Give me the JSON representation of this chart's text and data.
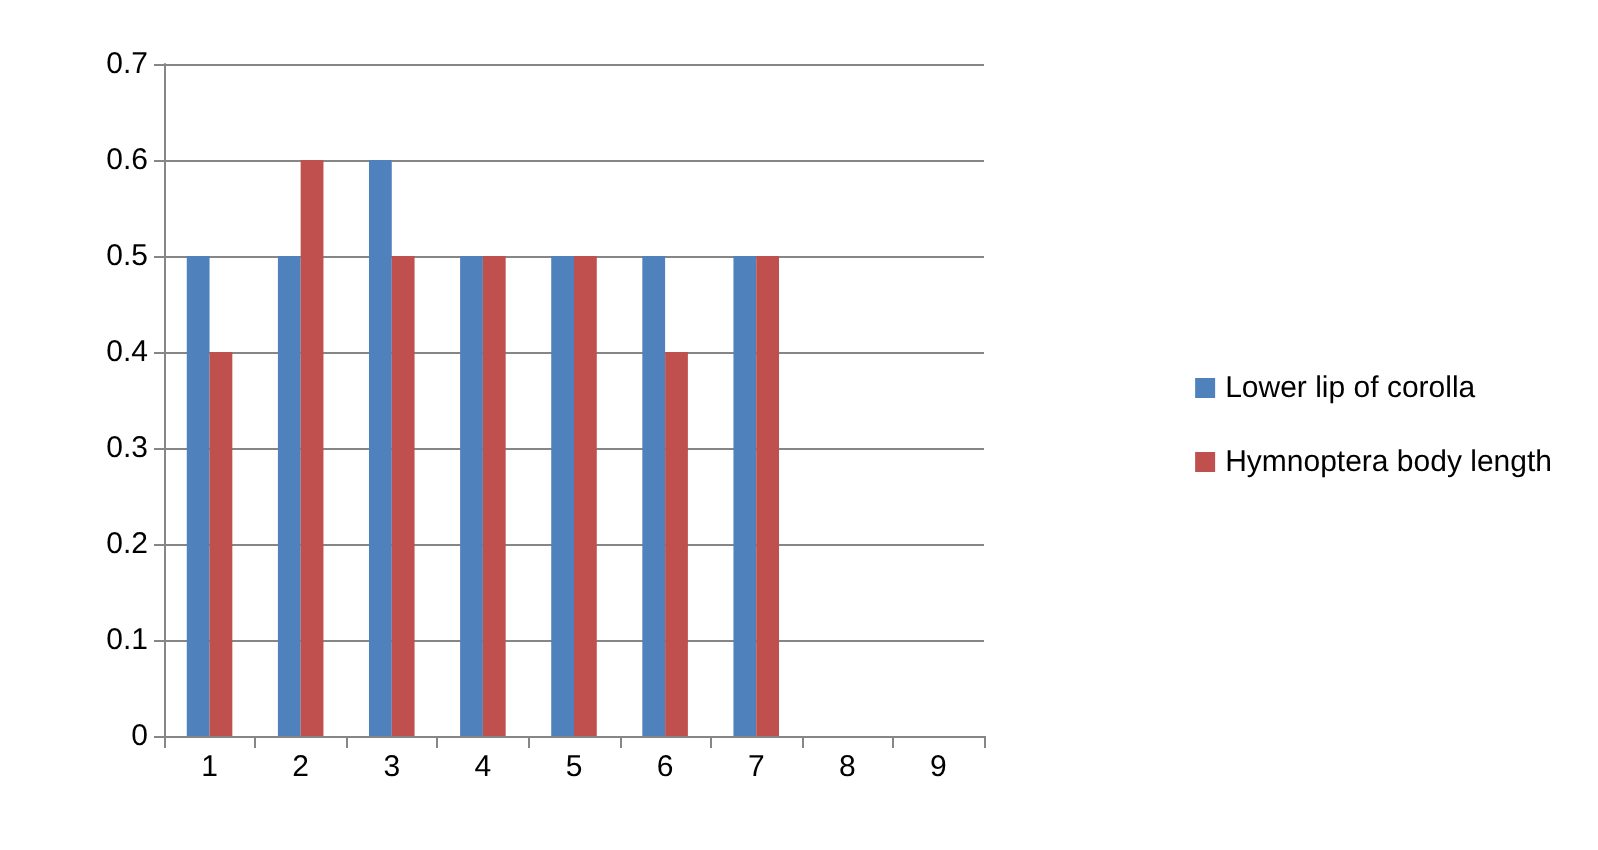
{
  "chart_data": {
    "type": "bar",
    "categories": [
      "1",
      "2",
      "3",
      "4",
      "5",
      "6",
      "7",
      "8",
      "9"
    ],
    "series": [
      {
        "name": "Lower lip of corolla",
        "color": "#4f81bd",
        "values": [
          0.5,
          0.5,
          0.6,
          0.5,
          0.5,
          0.5,
          0.5,
          null,
          null
        ]
      },
      {
        "name": "Hymnoptera body length",
        "color": "#c0504d",
        "values": [
          0.4,
          0.6,
          0.5,
          0.5,
          0.5,
          0.4,
          0.5,
          null,
          null
        ]
      }
    ],
    "ylim": [
      0,
      0.7
    ],
    "yticks": [
      0,
      0.1,
      0.2,
      0.3,
      0.4,
      0.5,
      0.6,
      0.7
    ],
    "grid": "y",
    "legend": "right"
  }
}
